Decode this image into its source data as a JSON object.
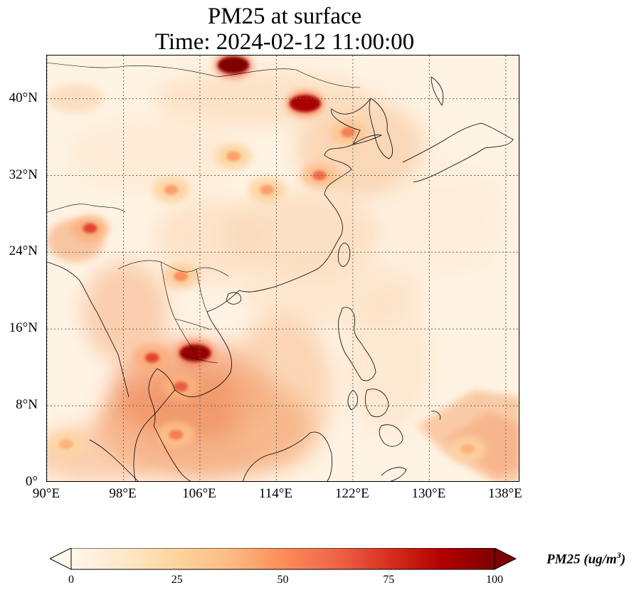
{
  "title": {
    "line1": "PM25 at surface",
    "line2": "Time: 2024-02-12 11:00:00"
  },
  "map": {
    "lon_range": [
      90,
      139.5
    ],
    "lat_range": [
      0,
      44.5
    ],
    "lat_ticks": [
      {
        "value": 0,
        "label": "0°"
      },
      {
        "value": 8,
        "label": "8°N"
      },
      {
        "value": 16,
        "label": "16°N"
      },
      {
        "value": 24,
        "label": "24°N"
      },
      {
        "value": 32,
        "label": "32°N"
      },
      {
        "value": 40,
        "label": "40°N"
      }
    ],
    "lon_ticks": [
      {
        "value": 90,
        "label": "90°E"
      },
      {
        "value": 98,
        "label": "98°E"
      },
      {
        "value": 106,
        "label": "106°E"
      },
      {
        "value": 114,
        "label": "114°E"
      },
      {
        "value": 122,
        "label": "122°E"
      },
      {
        "value": 130,
        "label": "130°E"
      },
      {
        "value": 138,
        "label": "138°E"
      }
    ],
    "gridlines": true
  },
  "colorbar": {
    "min": 0,
    "max": 100,
    "colormap": "OrRd",
    "extend": "both",
    "ticks": [
      {
        "value": 0,
        "label": "0"
      },
      {
        "value": 25,
        "label": "25"
      },
      {
        "value": 50,
        "label": "50"
      },
      {
        "value": 75,
        "label": "75"
      },
      {
        "value": 100,
        "label": "100"
      }
    ],
    "label_text": "PM25 (ug/m",
    "label_sup": "3",
    "label_close": ")",
    "colors": [
      "#fff7ec",
      "#fee8c8",
      "#fdd49e",
      "#fdbb84",
      "#fc8d59",
      "#ef6548",
      "#d7301f",
      "#b30000",
      "#7f0000"
    ]
  },
  "hotspots": [
    {
      "lon": 109.5,
      "lat": 43.5,
      "value": 100
    },
    {
      "lon": 117.0,
      "lat": 39.5,
      "value": 90
    },
    {
      "lon": 121.5,
      "lat": 36.5,
      "value": 55
    },
    {
      "lon": 118.5,
      "lat": 32.0,
      "value": 60
    },
    {
      "lon": 105.5,
      "lat": 13.5,
      "value": 95
    },
    {
      "lon": 104.0,
      "lat": 10.0,
      "value": 65
    },
    {
      "lon": 101.0,
      "lat": 13.0,
      "value": 70
    },
    {
      "lon": 94.5,
      "lat": 26.5,
      "value": 70
    },
    {
      "lon": 104.0,
      "lat": 21.5,
      "value": 50
    },
    {
      "lon": 103.0,
      "lat": 30.5,
      "value": 45
    },
    {
      "lon": 113.0,
      "lat": 30.5,
      "value": 45
    },
    {
      "lon": 109.5,
      "lat": 34.0,
      "value": 45
    },
    {
      "lon": 134.0,
      "lat": 3.5,
      "value": 40
    },
    {
      "lon": 92.0,
      "lat": 4.0,
      "value": 40
    },
    {
      "lon": 103.5,
      "lat": 5.0,
      "value": 55
    }
  ]
}
